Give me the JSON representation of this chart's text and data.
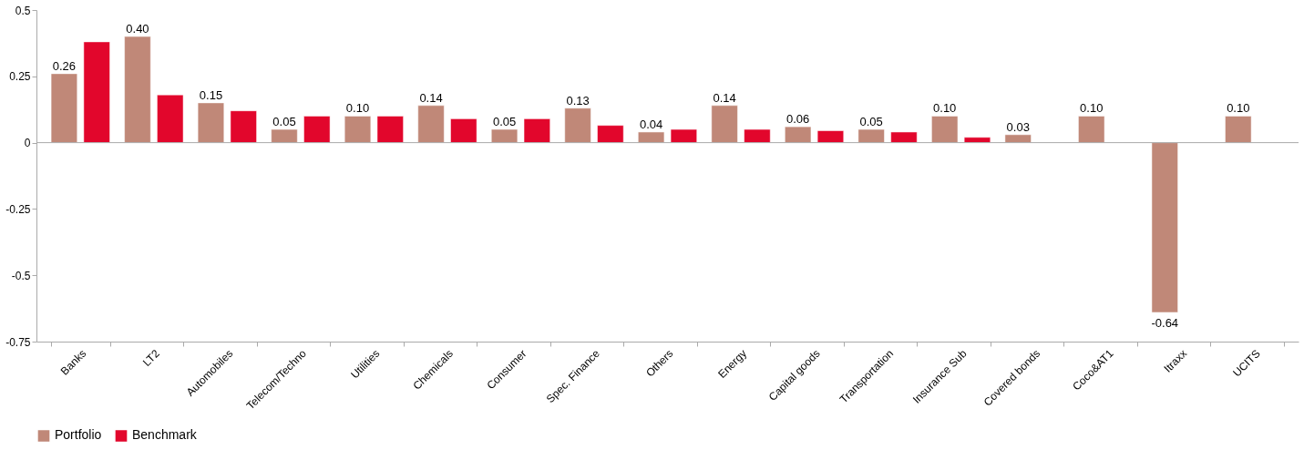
{
  "chart_data": {
    "type": "bar",
    "categories": [
      "Banks",
      "LT2",
      "Automobiles",
      "Telecom/Techno",
      "Utilities",
      "Chemicals",
      "Consumer",
      "Spec. Finance",
      "Others",
      "Energy",
      "Capital goods",
      "Transportation",
      "Insurance Sub",
      "Covered bonds",
      "Coco&AT1",
      "Itraxx",
      "UCITS"
    ],
    "series": [
      {
        "name": "Portfolio",
        "color": "#c08878",
        "values": [
          0.26,
          0.4,
          0.15,
          0.05,
          0.1,
          0.14,
          0.05,
          0.13,
          0.04,
          0.14,
          0.06,
          0.05,
          0.1,
          0.03,
          0.1,
          -0.64,
          0.1
        ],
        "value_labels": [
          "0.26",
          "0.40",
          "0.15",
          "0.05",
          "0.10",
          "0.14",
          "0.05",
          "0.13",
          "0.04",
          "0.14",
          "0.06",
          "0.05",
          "0.10",
          "0.03",
          "0.10",
          "-0.64",
          "0.10"
        ]
      },
      {
        "name": "Benchmark",
        "color": "#e2062c",
        "values": [
          0.38,
          0.18,
          0.12,
          0.1,
          0.1,
          0.09,
          0.09,
          0.065,
          0.05,
          0.05,
          0.045,
          0.04,
          0.02,
          null,
          null,
          null,
          null
        ]
      }
    ],
    "ylim": [
      -0.75,
      0.5
    ],
    "yticks": [
      0.5,
      0.25,
      0,
      -0.25,
      -0.5,
      -0.75
    ],
    "ref_lines": [
      {
        "axis": "y",
        "value": 0,
        "color": "#aaaaaa"
      }
    ],
    "grid": false,
    "legend": "bottom"
  }
}
